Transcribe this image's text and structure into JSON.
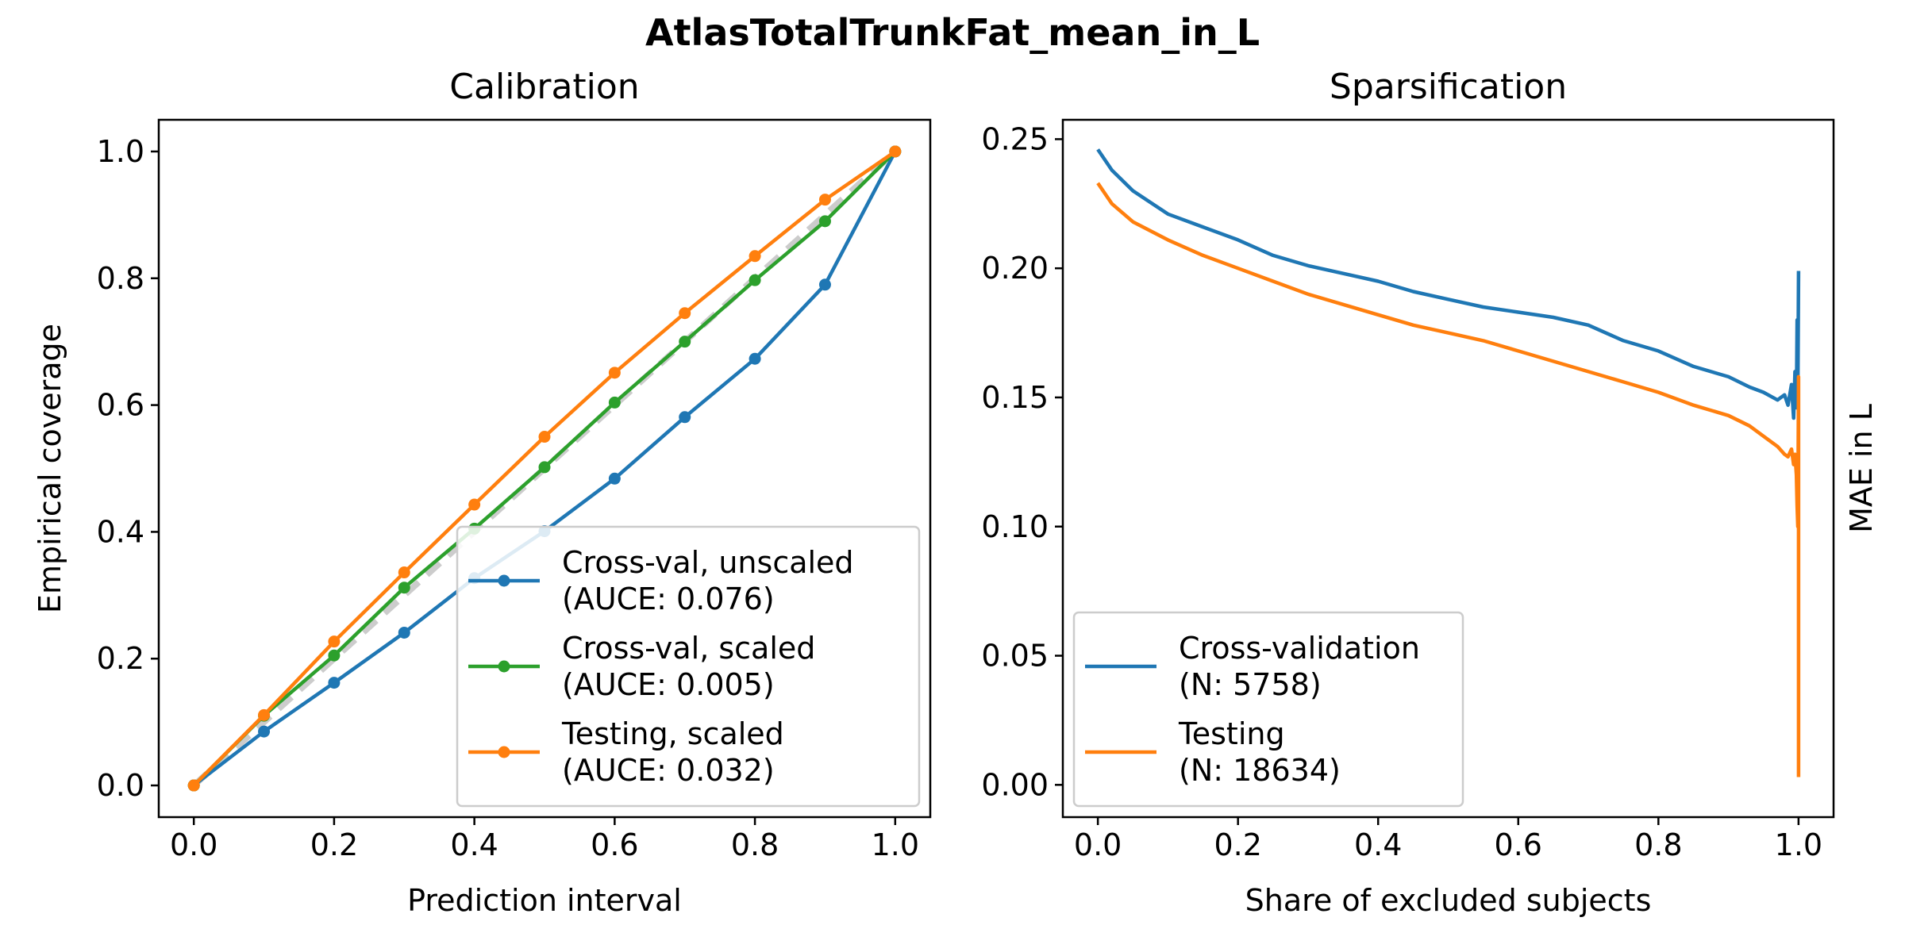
{
  "figure": {
    "suptitle": "AtlasTotalTrunkFat_mean_in_L"
  },
  "chart_data": [
    {
      "type": "line",
      "title": "Calibration",
      "xlabel": "Prediction interval",
      "ylabel": "Empirical coverage",
      "xlim": [
        -0.05,
        1.05
      ],
      "ylim": [
        -0.05,
        1.05
      ],
      "xticks": [
        "0.0",
        "0.2",
        "0.4",
        "0.6",
        "0.8",
        "1.0"
      ],
      "yticks": [
        "0.0",
        "0.2",
        "0.4",
        "0.6",
        "0.8",
        "1.0"
      ],
      "grid": false,
      "legend_position": "lower-right",
      "reference_line": {
        "style": "dashed",
        "color": "#cccccc",
        "x": [
          0,
          1
        ],
        "y": [
          0,
          1
        ]
      },
      "x": [
        0.0,
        0.1,
        0.2,
        0.3,
        0.4,
        0.5,
        0.6,
        0.7,
        0.8,
        0.9,
        1.0
      ],
      "series": [
        {
          "name": "Cross-val, unscaled",
          "name_line2": "(AUCE: 0.076)",
          "color": "#1f77b4",
          "values": [
            0.0,
            0.085,
            0.162,
            0.241,
            0.327,
            0.401,
            0.484,
            0.581,
            0.673,
            0.79,
            1.0
          ]
        },
        {
          "name": "Cross-val, scaled",
          "name_line2": "(AUCE: 0.005)",
          "color": "#2ca02c",
          "values": [
            0.0,
            0.11,
            0.205,
            0.312,
            0.405,
            0.502,
            0.604,
            0.7,
            0.797,
            0.89,
            1.0
          ]
        },
        {
          "name": "Testing, scaled",
          "name_line2": "(AUCE: 0.032)",
          "color": "#ff7f0e",
          "values": [
            0.0,
            0.111,
            0.227,
            0.336,
            0.443,
            0.55,
            0.651,
            0.745,
            0.835,
            0.924,
            1.0
          ]
        }
      ]
    },
    {
      "type": "line",
      "title": "Sparsification",
      "xlabel": "Share of excluded subjects",
      "ylabel": "MAE in L",
      "ylabel_side": "right",
      "xlim": [
        -0.05,
        1.05
      ],
      "ylim": [
        -0.0125,
        0.2575
      ],
      "xticks": [
        "0.0",
        "0.2",
        "0.4",
        "0.6",
        "0.8",
        "1.0"
      ],
      "yticks": [
        "0.00",
        "0.05",
        "0.10",
        "0.15",
        "0.20",
        "0.25"
      ],
      "grid": false,
      "legend_position": "lower-left",
      "series": [
        {
          "name": "Cross-validation",
          "name_line2": "(N: 5758)",
          "color": "#1f77b4",
          "x": [
            0.0,
            0.02,
            0.05,
            0.1,
            0.15,
            0.2,
            0.25,
            0.3,
            0.35,
            0.4,
            0.45,
            0.5,
            0.55,
            0.6,
            0.65,
            0.7,
            0.75,
            0.8,
            0.85,
            0.9,
            0.93,
            0.95,
            0.97,
            0.98,
            0.985,
            0.99,
            0.993,
            0.995,
            0.997,
            0.998,
            0.999,
            1.0
          ],
          "values": [
            0.246,
            0.238,
            0.23,
            0.221,
            0.216,
            0.211,
            0.205,
            0.201,
            0.198,
            0.195,
            0.191,
            0.188,
            0.185,
            0.183,
            0.181,
            0.178,
            0.172,
            0.168,
            0.162,
            0.158,
            0.154,
            0.152,
            0.149,
            0.151,
            0.147,
            0.155,
            0.142,
            0.16,
            0.146,
            0.18,
            0.15,
            0.199
          ]
        },
        {
          "name": "Testing",
          "name_line2": "(N: 18634)",
          "color": "#ff7f0e",
          "x": [
            0.0,
            0.02,
            0.05,
            0.1,
            0.15,
            0.2,
            0.25,
            0.3,
            0.35,
            0.4,
            0.45,
            0.5,
            0.55,
            0.6,
            0.65,
            0.7,
            0.75,
            0.8,
            0.85,
            0.9,
            0.93,
            0.95,
            0.97,
            0.98,
            0.985,
            0.99,
            0.993,
            0.995,
            0.997,
            0.998,
            0.999,
            1.0,
            1.0,
            1.0
          ],
          "values": [
            0.233,
            0.225,
            0.218,
            0.211,
            0.205,
            0.2,
            0.195,
            0.19,
            0.186,
            0.182,
            0.178,
            0.175,
            0.172,
            0.168,
            0.164,
            0.16,
            0.156,
            0.152,
            0.147,
            0.143,
            0.139,
            0.135,
            0.131,
            0.128,
            0.127,
            0.13,
            0.124,
            0.128,
            0.12,
            0.108,
            0.1,
            0.158,
            0.05,
            0.003
          ]
        }
      ]
    }
  ]
}
